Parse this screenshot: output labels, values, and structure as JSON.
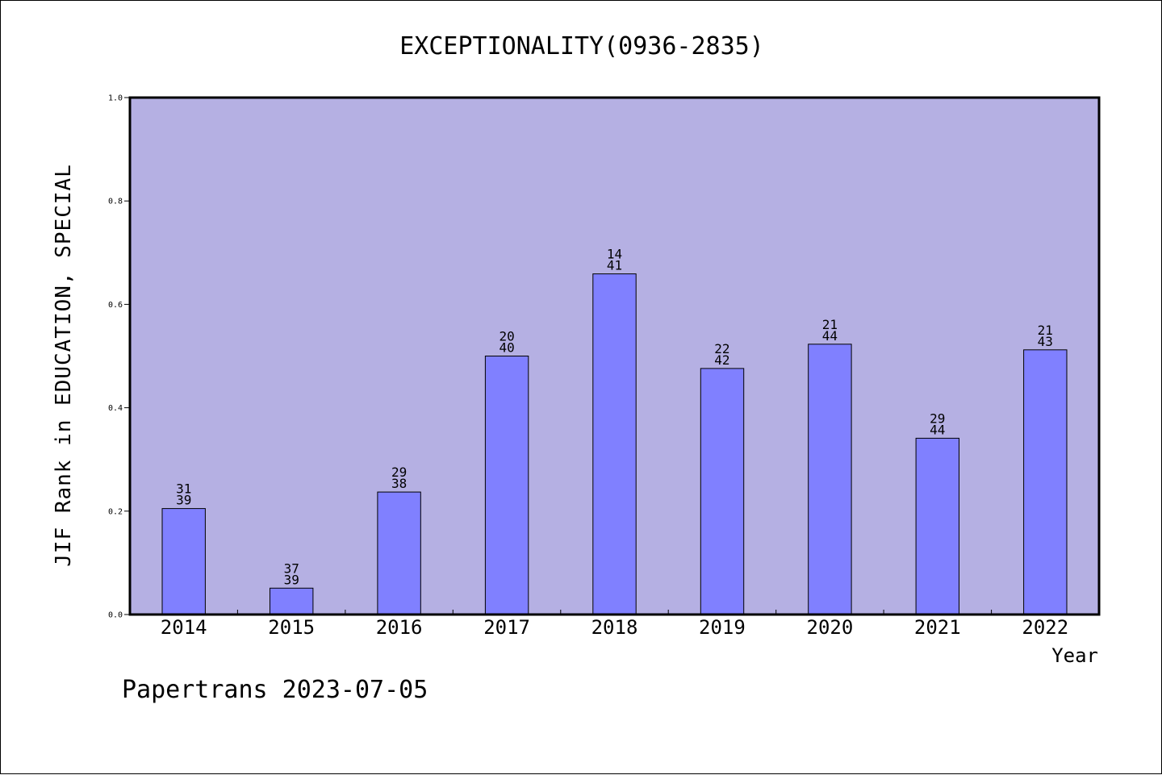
{
  "chart_data": {
    "type": "bar",
    "title": "EXCEPTIONALITY(0936-2835)",
    "xlabel": "Year",
    "ylabel": "JIF Rank in EDUCATION, SPECIAL",
    "ylim": [
      0,
      1.0
    ],
    "yticks": [
      "0.0",
      "0.2",
      "0.4",
      "0.6",
      "0.8",
      "1.0"
    ],
    "categories": [
      "2014",
      "2015",
      "2016",
      "2017",
      "2018",
      "2019",
      "2020",
      "2021",
      "2022"
    ],
    "values": [
      0.205,
      0.051,
      0.237,
      0.5,
      0.659,
      0.476,
      0.523,
      0.341,
      0.512
    ],
    "rank_labels": [
      {
        "top": "31",
        "bottom": "39"
      },
      {
        "top": "37",
        "bottom": "39"
      },
      {
        "top": "29",
        "bottom": "38"
      },
      {
        "top": "20",
        "bottom": "40"
      },
      {
        "top": "14",
        "bottom": "41"
      },
      {
        "top": "22",
        "bottom": "42"
      },
      {
        "top": "21",
        "bottom": "44"
      },
      {
        "top": "29",
        "bottom": "44"
      },
      {
        "top": "21",
        "bottom": "43"
      }
    ],
    "grid": false,
    "colors": {
      "plot_bg": "#b5b0e3",
      "bar": "#8080ff",
      "edge": "#000000"
    }
  },
  "footer": "Papertrans 2023-07-05"
}
